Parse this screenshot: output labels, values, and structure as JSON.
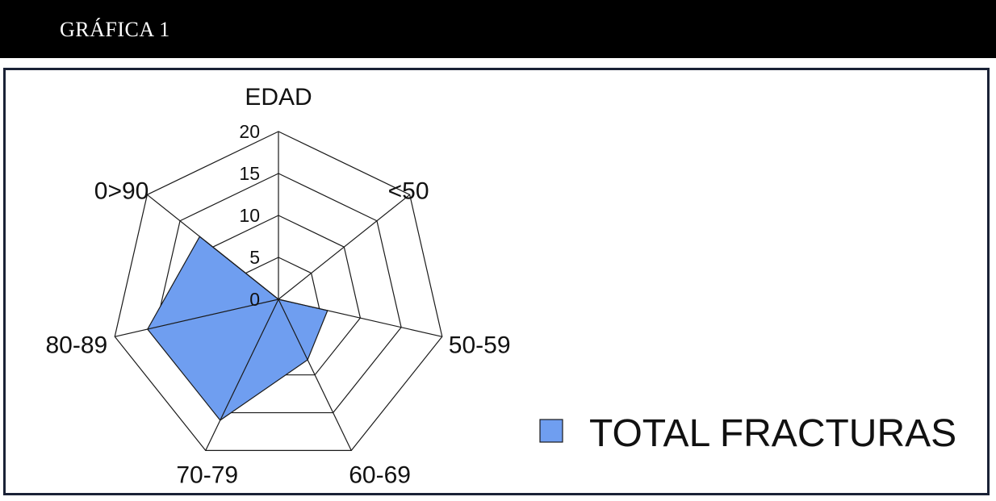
{
  "header": {
    "title": "GRÁFICA 1"
  },
  "chart_data": {
    "type": "radar",
    "categories": [
      "EDAD",
      "<50",
      "50-59",
      "60-69",
      "70-79",
      "80-89",
      "0>90"
    ],
    "rlim": [
      0,
      20
    ],
    "ticks": [
      0,
      5,
      10,
      15,
      20
    ],
    "tick_labels": [
      "0",
      "5",
      "10",
      "15",
      "20"
    ],
    "grid": true,
    "legend_position": "bottom-right",
    "series": [
      {
        "name": "TOTAL FRACTURAS",
        "values": [
          0,
          0,
          6,
          8,
          16,
          16,
          12
        ],
        "color": "#6f9ef0"
      }
    ]
  }
}
